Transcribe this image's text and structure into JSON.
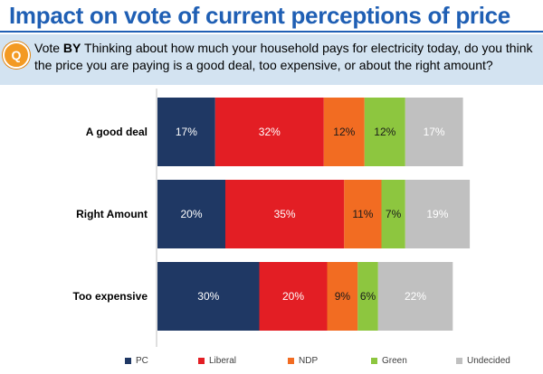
{
  "title": "Impact on vote of current perceptions of price",
  "question": {
    "badge": "Q",
    "prefix": "Vote ",
    "bold": "BY",
    "text": " Thinking about how much your household pays for electricity today, do you think the price you are paying is a good deal, too expensive, or about the right amount?"
  },
  "chart_data": {
    "type": "bar",
    "orientation": "horizontal",
    "stacked": true,
    "categories": [
      "A good deal",
      "Right Amount",
      "Too expensive"
    ],
    "series": [
      {
        "name": "PC",
        "color": "#1f3864",
        "values": [
          17,
          20,
          30
        ],
        "labels": [
          "17%",
          "20%",
          "30%"
        ]
      },
      {
        "name": "Liberal",
        "color": "#e31e24",
        "values": [
          32,
          35,
          20
        ],
        "labels": [
          "32%",
          "35%",
          "20%"
        ]
      },
      {
        "name": "NDP",
        "color": "#f26c22",
        "values": [
          12,
          11,
          9
        ],
        "labels": [
          "12%",
          "11%",
          "9%"
        ]
      },
      {
        "name": "Green",
        "color": "#8dc63f",
        "values": [
          12,
          7,
          6
        ],
        "labels": [
          "12%",
          "7%",
          "6%"
        ]
      },
      {
        "name": "Undecided",
        "color": "#c0c0c0",
        "values": [
          17,
          19,
          22
        ],
        "labels": [
          "17%",
          "19%",
          "22%"
        ]
      }
    ],
    "xlim": [
      0,
      100
    ],
    "legend_position": "bottom",
    "grid": false
  }
}
